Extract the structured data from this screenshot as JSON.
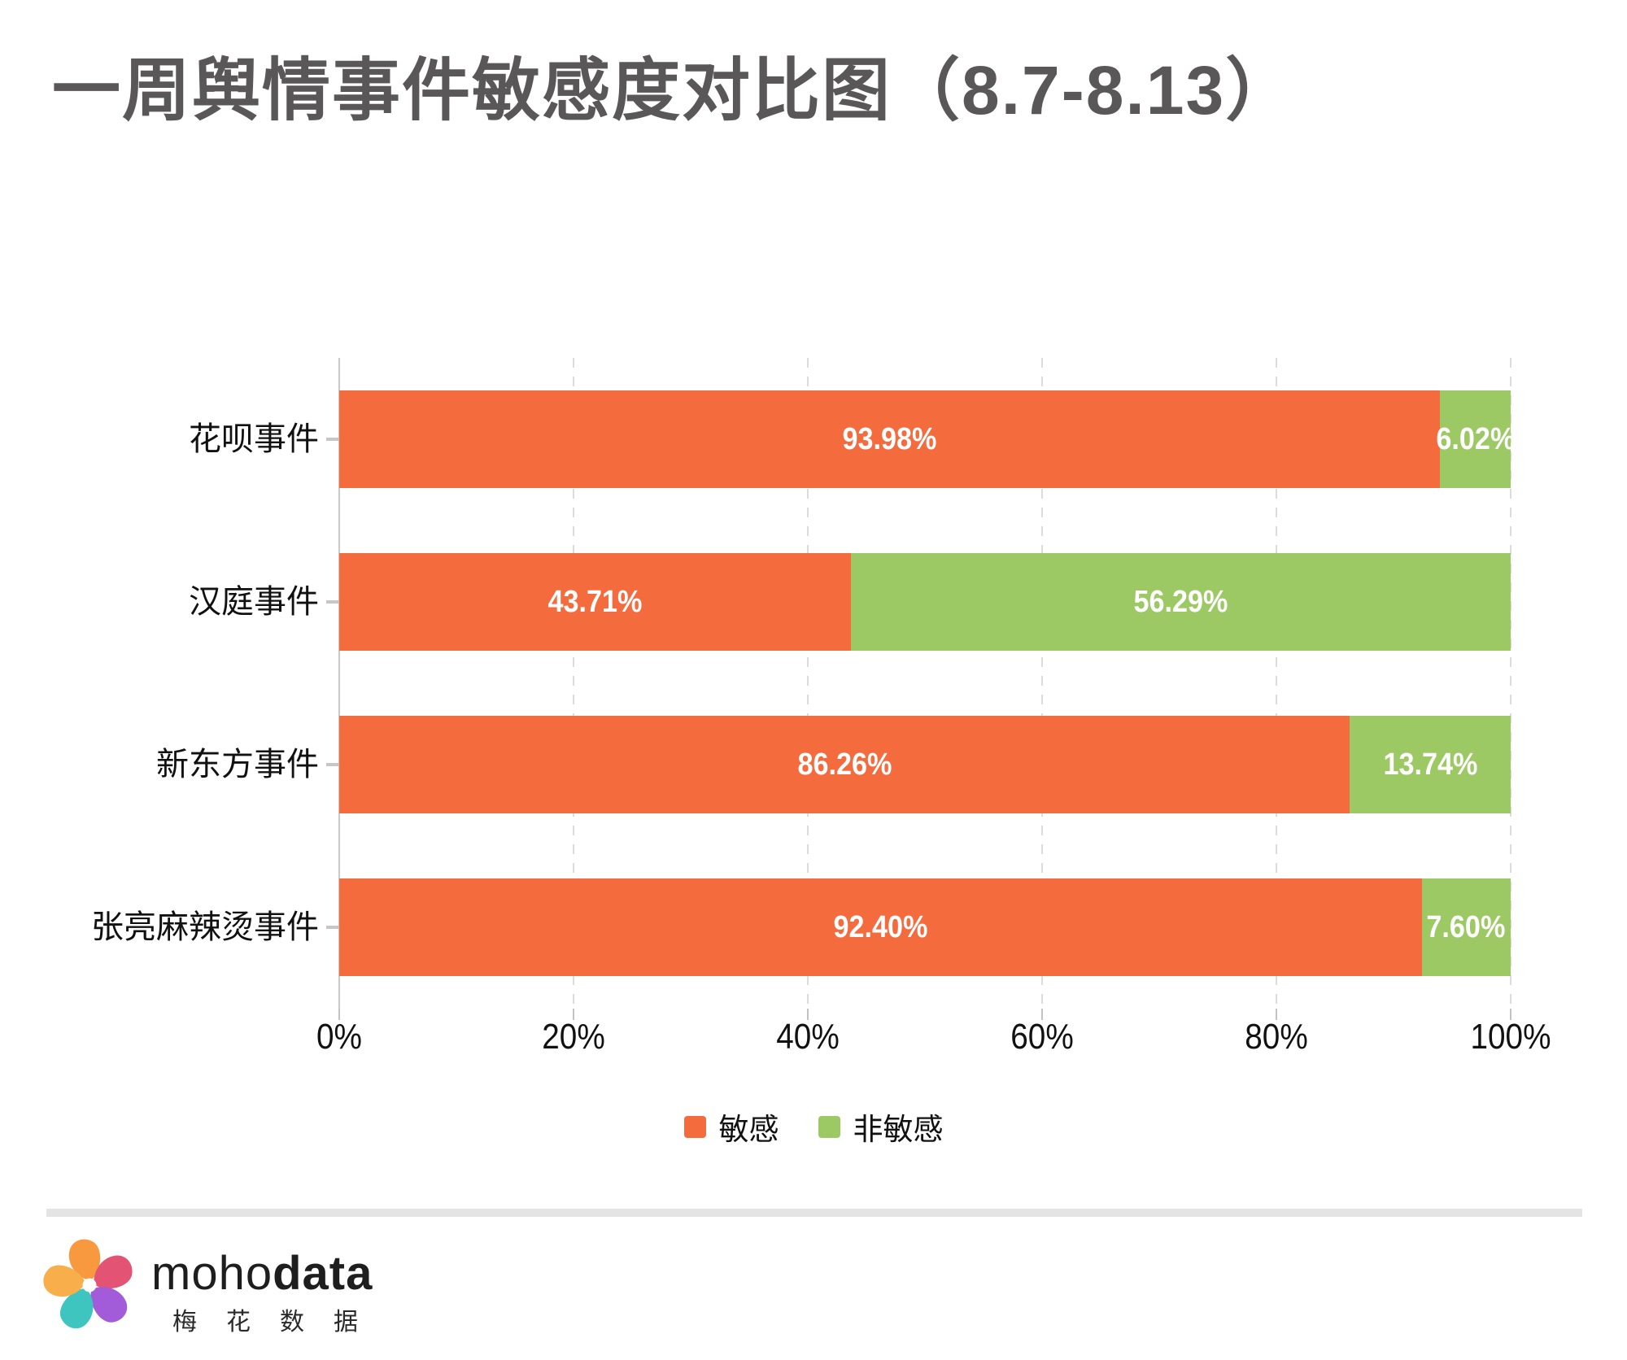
{
  "title": "一周舆情事件敏感度对比图（8.7-8.13）",
  "chart_data": {
    "type": "bar",
    "orientation": "horizontal-stacked",
    "title": "一周舆情事件敏感度对比图（8.7-8.13）",
    "categories": [
      "花呗事件",
      "汉庭事件",
      "新东方事件",
      "张亮麻辣烫事件"
    ],
    "series": [
      {
        "name": "敏感",
        "color": "#F46B3D",
        "values": [
          93.98,
          43.71,
          86.26,
          92.4
        ]
      },
      {
        "name": "非敏感",
        "color": "#9CC964",
        "values": [
          6.02,
          56.29,
          13.74,
          7.6
        ]
      }
    ],
    "value_labels": [
      [
        "93.98%",
        "6.02%"
      ],
      [
        "43.71%",
        "56.29%"
      ],
      [
        "86.26%",
        "13.74%"
      ],
      [
        "92.40%",
        "7.60%"
      ]
    ],
    "x_ticks": [
      "0%",
      "20%",
      "40%",
      "60%",
      "80%",
      "100%"
    ],
    "xlim": [
      0,
      100
    ],
    "grid": "vertical-dashed",
    "legend_position": "bottom-center"
  },
  "legend": {
    "items": [
      {
        "label": "敏感",
        "color": "#F46B3D"
      },
      {
        "label": "非敏感",
        "color": "#9CC964"
      }
    ]
  },
  "styles": {
    "title_color": "#595757",
    "axis_line_color": "#C9C9C9",
    "gridline_color": "#DCDCDC",
    "tick_label_color": "#111111",
    "value_label_color": "#FFFFFF",
    "separator_color": "#E4E4E4"
  },
  "footer": {
    "brand_light": "moho",
    "brand_bold": "data",
    "brand_cn": "梅花数据",
    "logo_petal_colors": [
      "#F8993F",
      "#E35374",
      "#A25CD9",
      "#3EC5BF",
      "#F9AE4C"
    ],
    "logo_center_color": "#FFFFFF"
  }
}
